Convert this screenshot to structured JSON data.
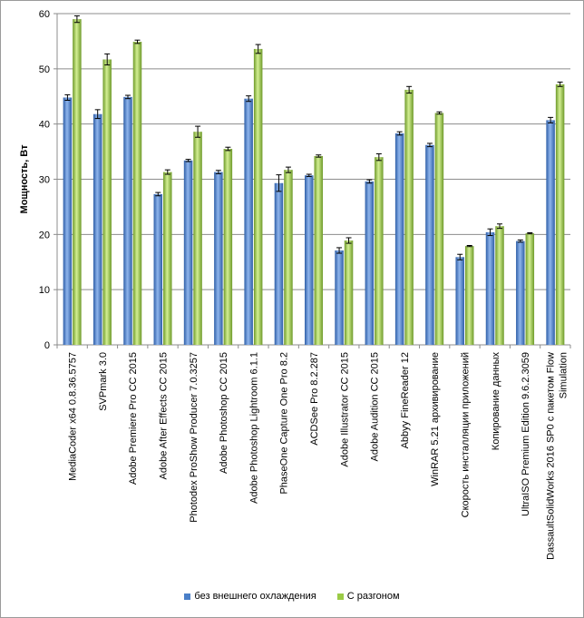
{
  "chart_data": {
    "type": "bar",
    "title": "",
    "xlabel": "",
    "ylabel": "Мощность,  Вт",
    "ylim": [
      0,
      60
    ],
    "yticks": [
      0,
      10,
      20,
      30,
      40,
      50,
      60
    ],
    "grid": "horizontal",
    "legend_position": "bottom",
    "categories": [
      "MediaCoder x64 0.8.36.5757",
      "SVPmark 3.0",
      "Adobe Premiere Pro CC 2015",
      "Adobe After Effects CC 2015",
      "Photodex ProShow Producer 7.0.3257",
      "Adobe Photoshop CC 2015",
      "Adobe Photoshop Lightroom 6.1.1",
      "PhaseOne Capture One Pro 8.2",
      "ACDSee Pro 8.2.287",
      "Adobe Illustrator CC 2015",
      "Adobe Audition CC 2015",
      "Abbyy FineReader 12",
      "WinRAR 5.21 архивирование",
      "Скорость инсталляции приложений",
      "Копирование данных",
      "UltraISO Premium Edition 9.6.2.3059",
      "DassaultSolidWorks 2016 SP0 с пакетом Flow Simulation"
    ],
    "series": [
      {
        "name": "без внешнего  охлаждения",
        "color": "#4a7fc8",
        "values": [
          44.8,
          41.8,
          44.9,
          27.3,
          33.4,
          31.3,
          44.6,
          29.3,
          30.7,
          17.1,
          29.6,
          38.3,
          36.2,
          15.9,
          20.4,
          18.8,
          40.7
        ],
        "errors": [
          0.5,
          0.8,
          0.3,
          0.3,
          0.2,
          0.3,
          0.5,
          1.5,
          0.2,
          0.5,
          0.3,
          0.3,
          0.3,
          0.5,
          0.6,
          0.2,
          0.5
        ]
      },
      {
        "name": "С разгоном",
        "color": "#9bcb46",
        "values": [
          59.0,
          51.7,
          54.9,
          31.3,
          38.6,
          35.5,
          53.6,
          31.7,
          34.2,
          18.9,
          34.0,
          46.2,
          42.0,
          17.9,
          21.5,
          20.2,
          47.2
        ],
        "errors": [
          0.6,
          1.0,
          0.3,
          0.4,
          1.0,
          0.3,
          0.8,
          0.5,
          0.2,
          0.5,
          0.6,
          0.6,
          0.2,
          0.1,
          0.4,
          0.1,
          0.4
        ]
      }
    ]
  }
}
